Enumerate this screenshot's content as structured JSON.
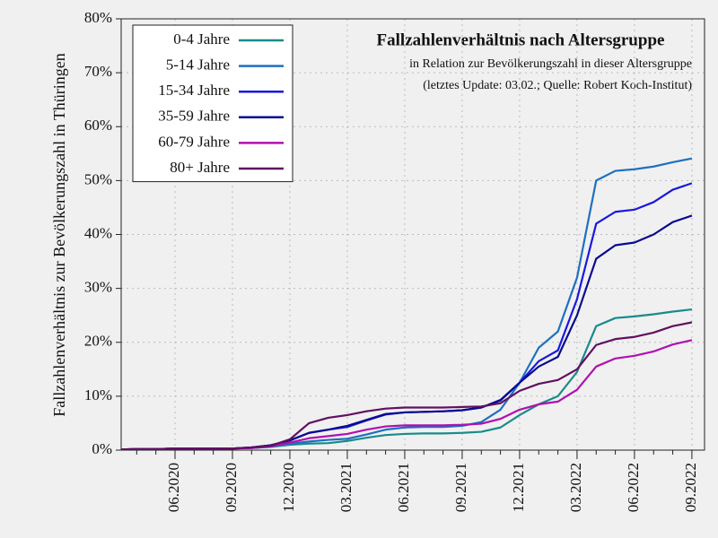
{
  "chart_data": {
    "type": "line",
    "title": "Fallzahlenverhältnis nach Altersgruppe",
    "subtitle": "in Relation zur Bevölkerungszahl in dieser Altersgruppe",
    "note": "(letztes Update: 03.02.; Quelle: Robert Koch-Institut)",
    "y_label": "Fallzahlenverhältnis zur Bevölkerungszahl in Thüringen",
    "categories": [
      null,
      null,
      null,
      "06.2020",
      null,
      null,
      "09.2020",
      null,
      null,
      "12.2020",
      null,
      null,
      "03.2021",
      null,
      null,
      "06.2021",
      null,
      null,
      "09.2021",
      null,
      null,
      "12.2021",
      null,
      null,
      "03.2022",
      null,
      null,
      "06.2022",
      null,
      null,
      "09.2022"
    ],
    "ylim": [
      0,
      80
    ],
    "yticks": [
      {
        "value": 0,
        "label": "0%"
      },
      {
        "value": 10,
        "label": "10%"
      },
      {
        "value": 20,
        "label": "20%"
      },
      {
        "value": 30,
        "label": "30%"
      },
      {
        "value": 40,
        "label": "40%"
      },
      {
        "value": 50,
        "label": "50%"
      },
      {
        "value": 60,
        "label": "60%"
      },
      {
        "value": 70,
        "label": "70%"
      },
      {
        "value": 80,
        "label": "80%"
      }
    ],
    "grid": true,
    "legend": "top-left",
    "series": [
      {
        "name": "0-4 Jahre",
        "color": "#1a8a8a",
        "values": [
          0.1,
          0.2,
          0.2,
          0.3,
          0.3,
          0.3,
          0.3,
          0.4,
          0.6,
          1.0,
          1.2,
          1.3,
          1.7,
          2.3,
          2.8,
          3.0,
          3.1,
          3.1,
          3.2,
          3.4,
          4.2,
          6.5,
          8.5,
          10,
          14.5,
          23,
          24.5,
          24.8,
          25.2,
          25.7,
          26.1
        ]
      },
      {
        "name": "5-14 Jahre",
        "color": "#1f70c0",
        "values": [
          0.1,
          0.2,
          0.2,
          0.3,
          0.3,
          0.3,
          0.3,
          0.4,
          0.7,
          1.2,
          1.6,
          1.9,
          2.1,
          2.9,
          3.8,
          4.2,
          4.3,
          4.3,
          4.5,
          5.2,
          7.5,
          12.5,
          19,
          22,
          32,
          50,
          51.8,
          52.1,
          52.6,
          53.4,
          54.1
        ]
      },
      {
        "name": "15-34 Jahre",
        "color": "#1818e0",
        "values": [
          0.1,
          0.2,
          0.2,
          0.3,
          0.3,
          0.3,
          0.3,
          0.5,
          0.9,
          1.8,
          3.2,
          3.8,
          4.3,
          5.5,
          6.6,
          7.0,
          7.1,
          7.2,
          7.4,
          7.9,
          9.2,
          12.5,
          16.5,
          18.5,
          28,
          42,
          44.2,
          44.6,
          46,
          48.3,
          49.5
        ]
      },
      {
        "name": "35-59 Jahre",
        "color": "#0a0a90",
        "values": [
          0.1,
          0.2,
          0.2,
          0.3,
          0.3,
          0.3,
          0.3,
          0.5,
          0.9,
          1.8,
          3.2,
          3.8,
          4.5,
          5.6,
          6.7,
          7.0,
          7.1,
          7.2,
          7.4,
          7.9,
          9.3,
          12.5,
          15.5,
          17.3,
          25,
          35.5,
          38,
          38.5,
          40,
          42.3,
          43.5
        ]
      },
      {
        "name": "60-79 Jahre",
        "color": "#b010b0",
        "values": [
          0.1,
          0.2,
          0.2,
          0.3,
          0.3,
          0.3,
          0.3,
          0.4,
          0.7,
          1.4,
          2.2,
          2.6,
          3.0,
          3.8,
          4.4,
          4.6,
          4.6,
          4.6,
          4.7,
          4.9,
          5.8,
          7.5,
          8.5,
          9,
          11.2,
          15.5,
          17,
          17.5,
          18.3,
          19.6,
          20.4
        ]
      },
      {
        "name": "80+ Jahre",
        "color": "#601060",
        "values": [
          0.1,
          0.2,
          0.2,
          0.3,
          0.3,
          0.3,
          0.3,
          0.5,
          0.8,
          2,
          5,
          6,
          6.5,
          7.2,
          7.7,
          7.9,
          7.9,
          7.9,
          8,
          8.1,
          8.7,
          11,
          12.3,
          13,
          15,
          19.5,
          20.6,
          21,
          21.8,
          23,
          23.7
        ]
      }
    ]
  }
}
